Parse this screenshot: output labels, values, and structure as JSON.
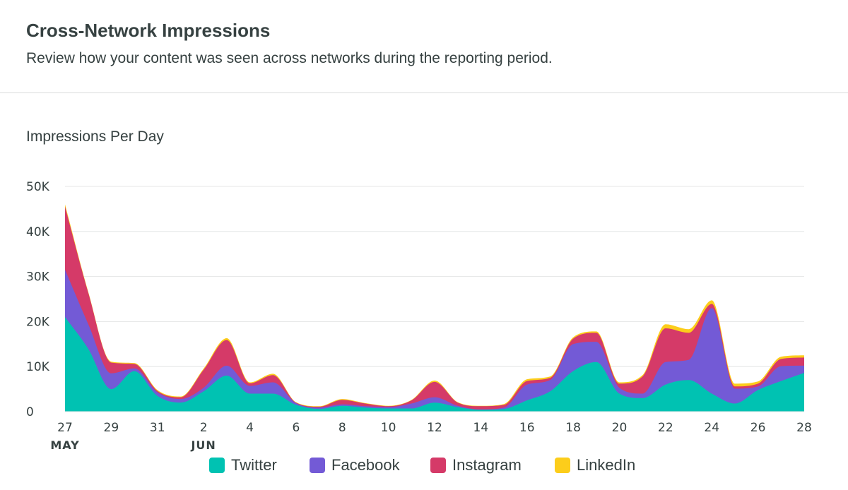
{
  "header": {
    "title": "Cross-Network Impressions",
    "subtitle": "Review how your content was seen across networks during the reporting period."
  },
  "chart_data": {
    "type": "area",
    "stacked": true,
    "title": "Impressions Per Day",
    "xlabel": "",
    "ylabel": "",
    "ylim": [
      0,
      50000
    ],
    "y_ticks": [
      "0",
      "10K",
      "20K",
      "30K",
      "40K",
      "50K"
    ],
    "x": [
      "May 27",
      "May 28",
      "May 29",
      "May 30",
      "May 31",
      "Jun 1",
      "Jun 2",
      "Jun 3",
      "Jun 4",
      "Jun 5",
      "Jun 6",
      "Jun 7",
      "Jun 8",
      "Jun 9",
      "Jun 10",
      "Jun 11",
      "Jun 12",
      "Jun 13",
      "Jun 14",
      "Jun 15",
      "Jun 16",
      "Jun 17",
      "Jun 18",
      "Jun 19",
      "Jun 20",
      "Jun 21",
      "Jun 22",
      "Jun 23",
      "Jun 24",
      "Jun 25",
      "Jun 26",
      "Jun 27",
      "Jun 28"
    ],
    "x_tick_labels": [
      "27",
      "",
      "29",
      "",
      "31",
      "",
      "2",
      "",
      "4",
      "",
      "6",
      "",
      "8",
      "",
      "10",
      "",
      "12",
      "",
      "14",
      "",
      "16",
      "",
      "18",
      "",
      "20",
      "",
      "22",
      "",
      "24",
      "",
      "26",
      "",
      "28"
    ],
    "month_labels": [
      {
        "label": "MAY",
        "index": 0
      },
      {
        "label": "JUN",
        "index": 6
      }
    ],
    "grid": true,
    "legend_position": "bottom",
    "series": [
      {
        "name": "Twitter",
        "color": "#00c2b2",
        "values": [
          21000,
          14000,
          5000,
          9000,
          3500,
          2000,
          4500,
          8000,
          4000,
          4000,
          1500,
          600,
          1300,
          900,
          700,
          700,
          2000,
          1000,
          400,
          600,
          2500,
          4500,
          9000,
          11000,
          4000,
          3000,
          6000,
          7000,
          4000,
          1800,
          4800,
          6800,
          8600
        ]
      },
      {
        "name": "Facebook",
        "color": "#735ad6",
        "values": [
          10500,
          5500,
          3500,
          600,
          800,
          800,
          800,
          2200,
          1700,
          2500,
          400,
          300,
          300,
          300,
          300,
          1100,
          1200,
          300,
          100,
          300,
          3500,
          2500,
          6000,
          4500,
          1300,
          1000,
          5000,
          4500,
          19000,
          3300,
          800,
          3300,
          1600
        ]
      },
      {
        "name": "Instagram",
        "color": "#d53a68",
        "values": [
          14000,
          7000,
          2400,
          1000,
          300,
          400,
          4000,
          5700,
          600,
          1600,
          100,
          200,
          1000,
          600,
          200,
          700,
          3400,
          700,
          700,
          600,
          800,
          500,
          1200,
          2000,
          900,
          3800,
          7500,
          6000,
          900,
          500,
          600,
          1600,
          1800
        ]
      },
      {
        "name": "LinkedIn",
        "color": "#fccd1b",
        "values": [
          500,
          200,
          200,
          200,
          200,
          150,
          250,
          400,
          200,
          300,
          100,
          100,
          200,
          100,
          100,
          100,
          300,
          100,
          100,
          200,
          400,
          300,
          300,
          300,
          300,
          300,
          900,
          800,
          800,
          600,
          500,
          500,
          500
        ]
      }
    ]
  }
}
